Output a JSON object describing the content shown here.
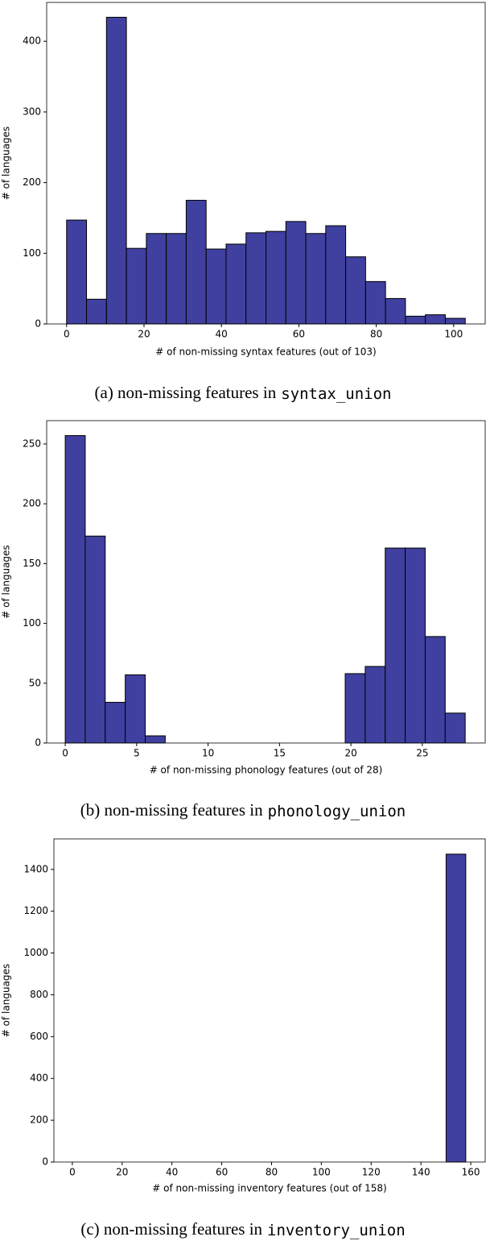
{
  "chart_data": [
    {
      "type": "histogram",
      "xlabel": "# of non-missing syntax features (out of 103)",
      "ylabel": "# of languages",
      "caption": {
        "text": "(a) non-missing features in",
        "code": "syntax_union"
      },
      "bins": [
        0,
        5.15,
        10.3,
        15.45,
        20.6,
        25.75,
        30.9,
        36.05,
        41.2,
        46.35,
        51.5,
        56.65,
        61.8,
        66.95,
        72.1,
        77.25,
        82.4,
        87.55,
        92.7,
        97.85,
        103
      ],
      "values": [
        147,
        35,
        434,
        107,
        128,
        128,
        175,
        106,
        113,
        129,
        131,
        145,
        128,
        139,
        95,
        60,
        36,
        11,
        13,
        8
      ],
      "color": "#4040a0",
      "xlim": [
        -5.15,
        108.15
      ],
      "ylim": [
        0,
        455
      ],
      "xticks": [
        0,
        20,
        40,
        60,
        80,
        100
      ],
      "yticks": [
        0,
        100,
        200,
        300,
        400
      ]
    },
    {
      "type": "histogram",
      "xlabel": "# of non-missing phonology features (out of 28)",
      "ylabel": "# of languages",
      "caption": {
        "text": "(b) non-missing features in",
        "code": "phonology_union"
      },
      "bins": [
        0,
        1.4,
        2.8,
        4.2,
        5.6,
        7,
        8.4,
        9.8,
        11.2,
        12.6,
        14,
        15.4,
        16.8,
        18.2,
        19.6,
        21,
        22.4,
        23.8,
        25.2,
        26.6,
        28
      ],
      "values": [
        257,
        173,
        34,
        57,
        6,
        0,
        0,
        0,
        0,
        0,
        0,
        0,
        0,
        0,
        58,
        64,
        163,
        163,
        89,
        25
      ],
      "color": "#4040a0",
      "xlim": [
        -1.3,
        29.4
      ],
      "ylim": [
        0,
        269.5
      ],
      "xticks": [
        0,
        5,
        10,
        15,
        20,
        25
      ],
      "yticks": [
        0,
        50,
        100,
        150,
        200,
        250
      ]
    },
    {
      "type": "histogram",
      "xlabel": "# of non-missing inventory features (out of 158)",
      "ylabel": "# of languages",
      "caption": {
        "text": "(c) non-missing features in",
        "code": "inventory_union"
      },
      "bins": [
        0,
        7.9,
        15.8,
        23.7,
        31.6,
        39.5,
        47.4,
        55.3,
        63.2,
        71.1,
        79,
        86.9,
        94.8,
        102.7,
        110.6,
        118.5,
        126.4,
        134.3,
        142.2,
        150.1,
        158
      ],
      "values": [
        0,
        0,
        0,
        0,
        0,
        0,
        0,
        0,
        0,
        0,
        0,
        0,
        0,
        0,
        0,
        0,
        0,
        0,
        0,
        1473
      ],
      "color": "#4040a0",
      "xlim": [
        -7.4,
        165.8
      ],
      "ylim": [
        0,
        1546
      ],
      "xticks": [
        0,
        20,
        40,
        60,
        80,
        100,
        120,
        140,
        160
      ],
      "yticks": [
        0,
        200,
        400,
        600,
        800,
        1000,
        1200,
        1400
      ]
    }
  ]
}
